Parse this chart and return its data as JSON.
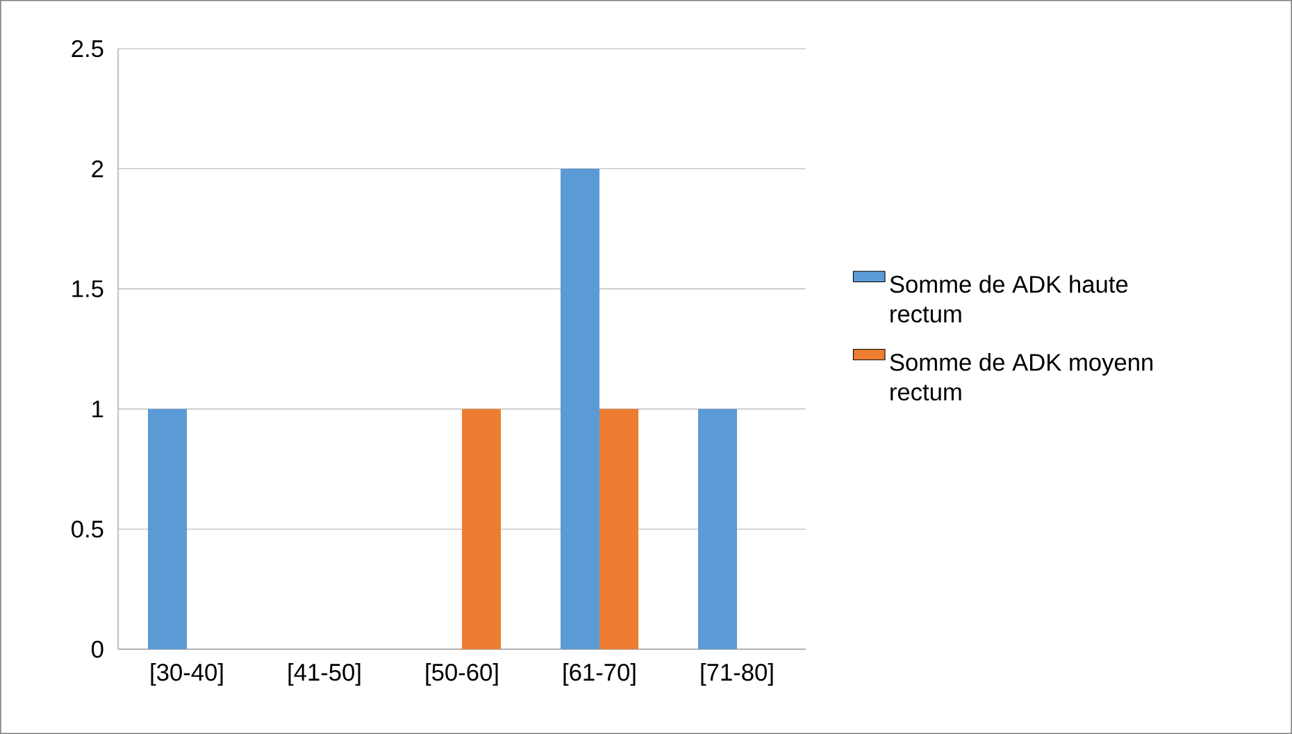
{
  "chart_data": {
    "type": "bar",
    "categories": [
      "[30-40]",
      "[41-50]",
      "[50-60]",
      "[61-70]",
      "[71-80]"
    ],
    "series": [
      {
        "name": "Somme de ADK haute rectum",
        "color": "#5b9bd5",
        "values": [
          1,
          0,
          0,
          2,
          1
        ]
      },
      {
        "name": "Somme de  ADK moyenn rectum",
        "color": "#ed7d31",
        "values": [
          0,
          0,
          1,
          1,
          0
        ]
      }
    ],
    "ylim": [
      0,
      2.5
    ],
    "yticks": [
      0,
      0.5,
      1,
      1.5,
      2,
      2.5
    ],
    "grid": "y",
    "legend": "right"
  }
}
